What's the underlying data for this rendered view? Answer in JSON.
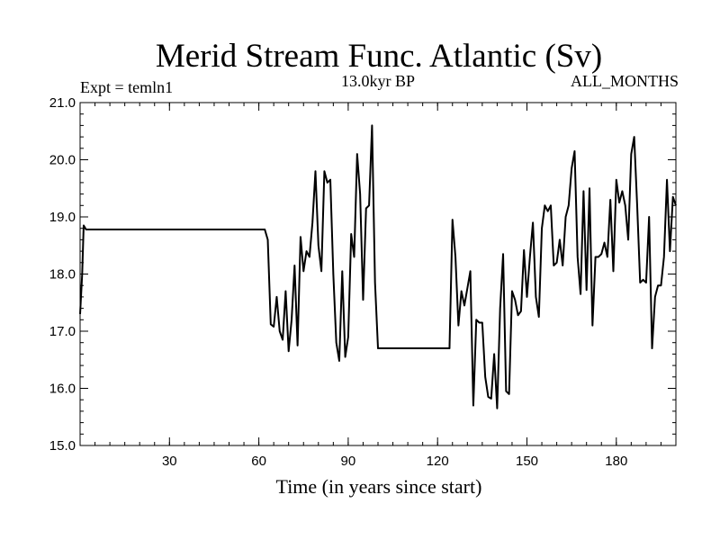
{
  "chart_data": {
    "type": "line",
    "title": "Merid Stream Func. Atlantic (Sv)",
    "subtitle_left": "Expt = temln1",
    "subtitle_center": "13.0kyr BP",
    "subtitle_right": "ALL_MONTHS",
    "xlabel": "Time (in years since start)",
    "ylabel": "",
    "xlim": [
      0,
      200
    ],
    "ylim": [
      15.0,
      21.0
    ],
    "xticks": [
      30,
      60,
      90,
      120,
      150,
      180
    ],
    "xtick_labels": [
      "30",
      "60",
      "90",
      "120",
      "150",
      "180"
    ],
    "yticks": [
      15.0,
      16.0,
      17.0,
      18.0,
      19.0,
      20.0,
      21.0
    ],
    "ytick_labels": [
      "15.0",
      "16.0",
      "17.0",
      "18.0",
      "19.0",
      "20.0",
      "21.0"
    ],
    "grid": false,
    "series": [
      {
        "name": "Merid Stream Func. Atlantic",
        "color": "#000000",
        "x": [
          0,
          0.7,
          1.2,
          2,
          62,
          63,
          64,
          64.5,
          65,
          66,
          67,
          68,
          69,
          70,
          71,
          72,
          73,
          74,
          75,
          76,
          77,
          78,
          79,
          80,
          81,
          82,
          83,
          84,
          85,
          86,
          87,
          88,
          89,
          90,
          91,
          92,
          93,
          94,
          95,
          96,
          97,
          98,
          99,
          100,
          124,
          125,
          126,
          127,
          128,
          129,
          130,
          131,
          132,
          133,
          134,
          135,
          136,
          137,
          138,
          139,
          140,
          141,
          142,
          143,
          144,
          145,
          146,
          147,
          148,
          149,
          150,
          151,
          152,
          153,
          154,
          155,
          156,
          157,
          158,
          159,
          160,
          161,
          162,
          163,
          164,
          165,
          166,
          167,
          168,
          169,
          170,
          171,
          172,
          173,
          174,
          175,
          176,
          177,
          178,
          179,
          180,
          181,
          182,
          183,
          184,
          185,
          186,
          187,
          188,
          189,
          190,
          191,
          192,
          193,
          194,
          195,
          196,
          197,
          198,
          199,
          200
        ],
        "values": [
          17.3,
          18.0,
          18.85,
          18.78,
          18.78,
          18.6,
          17.12,
          17.1,
          17.08,
          17.6,
          17.0,
          16.85,
          17.7,
          16.65,
          17.2,
          18.15,
          16.75,
          18.65,
          18.05,
          18.4,
          18.3,
          18.9,
          19.8,
          18.5,
          18.05,
          19.8,
          19.6,
          19.65,
          18.0,
          16.8,
          16.48,
          18.05,
          16.55,
          16.9,
          18.7,
          18.3,
          20.1,
          19.4,
          17.55,
          19.15,
          19.2,
          20.6,
          17.85,
          16.7,
          16.7,
          18.95,
          18.3,
          17.1,
          17.7,
          17.45,
          17.75,
          18.05,
          15.7,
          17.2,
          17.15,
          17.15,
          16.2,
          15.85,
          15.82,
          16.6,
          15.65,
          17.4,
          18.35,
          15.95,
          15.9,
          17.7,
          17.55,
          17.28,
          17.35,
          18.42,
          17.6,
          18.3,
          18.9,
          17.6,
          17.25,
          18.8,
          19.2,
          19.1,
          19.2,
          18.15,
          18.2,
          18.6,
          18.15,
          19.0,
          19.2,
          19.85,
          20.15,
          18.3,
          17.65,
          19.45,
          17.72,
          19.5,
          17.1,
          18.3,
          18.3,
          18.35,
          18.55,
          18.3,
          19.3,
          18.05,
          19.65,
          19.25,
          19.45,
          19.2,
          18.6,
          20.1,
          20.4,
          19.2,
          17.85,
          17.9,
          17.85,
          19.0,
          16.7,
          17.6,
          17.8,
          17.8,
          18.3,
          19.65,
          18.4,
          19.35,
          19.2
        ]
      }
    ]
  }
}
